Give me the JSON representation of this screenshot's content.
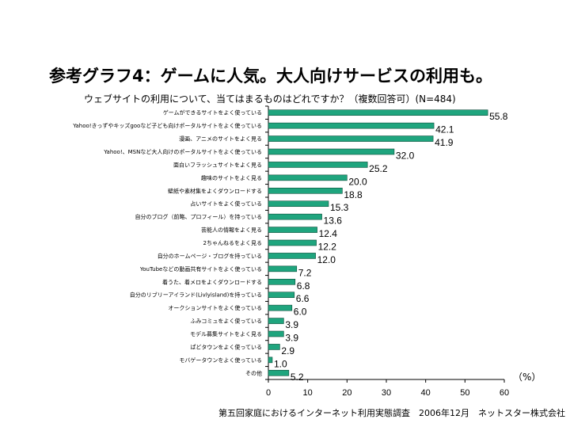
{
  "header": {
    "title": "参考グラフ4：ゲームに人気。大人向けサービスの利用も。",
    "subtitle": "ウェブサイトの利用について、当てはまるものはどれですか？（複数回答可）(N=484)"
  },
  "footer": {
    "source": "第五回家庭におけるインターネット利用実態調査　2006年12月　ネットスター株式会社"
  },
  "unit_label": "（%）",
  "colors": {
    "bar": "#1fa57e",
    "bar_edge": "#0c4d3a",
    "axis": "#000000"
  },
  "chart_data": {
    "type": "bar",
    "orientation": "horizontal",
    "title": "参考グラフ4：ゲームに人気。大人向けサービスの利用も。",
    "xlabel": "（%）",
    "xlim": [
      0,
      60
    ],
    "xticks": [
      0,
      10,
      20,
      30,
      40,
      50,
      60
    ],
    "grid": false,
    "categories": [
      "ゲームができるサイトをよく使っている",
      "Yahoo!きっずやキッズgooなど子ども向けポータルサイトをよく使っている",
      "漫画、アニメのサイトをよく見る",
      "Yahoo!、MSNなど大人向けのポータルサイトをよく使っている",
      "面白いフラッシュサイトをよく見る",
      "趣味のサイトをよく見る",
      "壁紙や素材集をよくダウンロードする",
      "占いサイトをよく使っている",
      "自分のブログ（前略、プロフィール）を持っている",
      "芸能人の情報をよく見る",
      "2ちゃんねるをよく見る",
      "自分のホームページ・ブログを持っている",
      "YouTubeなどの動画共有サイトをよく使っている",
      "着うた、着メロをよくダウンロードする",
      "自分のリブリーアイランド(Livlyisland)を持っている",
      "オークションサイトをよく使っている",
      "ふみコミュをよく使っている",
      "モデル募集サイトをよく見る",
      "ぱどタウンをよく使っている",
      "モバゲータウンをよく使っている",
      "その他"
    ],
    "values": [
      55.8,
      42.1,
      41.9,
      32.0,
      25.2,
      20.0,
      18.8,
      15.3,
      13.6,
      12.4,
      12.2,
      12.0,
      7.2,
      6.8,
      6.6,
      6.0,
      3.9,
      3.9,
      2.9,
      1.0,
      5.2
    ],
    "value_labels": [
      "55.8",
      "42.1",
      "41.9",
      "32.0",
      "25.2",
      "20.0",
      "18.8",
      "15.3",
      "13.6",
      "12.4",
      "12.2",
      "12.0",
      "7.2",
      "6.8",
      "6.6",
      "6.0",
      "3.9",
      "3.9",
      "2.9",
      "1.0",
      "5.2"
    ]
  }
}
